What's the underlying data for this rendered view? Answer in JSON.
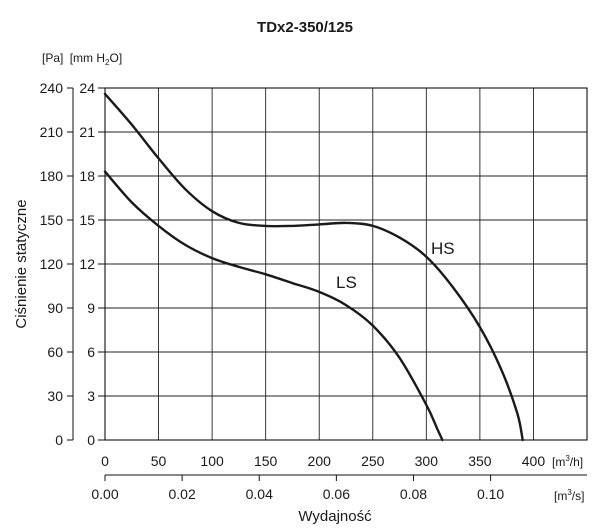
{
  "chart_data": {
    "type": "line",
    "title": "TDx2-350/125",
    "ylabel": "Ciśnienie statyczne",
    "xlabel": "Wydajność",
    "y_units": {
      "pa": "[Pa]",
      "mmh2o_prefix": "[mm H",
      "mmh2o_sub": "2",
      "mmh2o_suffix": "O]"
    },
    "x_units": {
      "m3h_prefix": "[m",
      "m3h_sup": "3",
      "m3h_suffix": "/h]",
      "m3s_prefix": "[m",
      "m3s_sup": "3",
      "m3s_suffix": "/s]"
    },
    "x_ticks_m3h": [
      "0",
      "50",
      "100",
      "150",
      "200",
      "250",
      "300",
      "350",
      "400"
    ],
    "x_ticks_m3s": [
      "0.00",
      "0.02",
      "0.04",
      "0.06",
      "0.08",
      "0.10"
    ],
    "y_ticks_pa": [
      "0",
      "30",
      "60",
      "90",
      "120",
      "150",
      "180",
      "210",
      "240"
    ],
    "y_ticks_mm": [
      "0",
      "3",
      "6",
      "9",
      "12",
      "15",
      "18",
      "21",
      "24"
    ],
    "xlim": [
      0,
      450
    ],
    "ylim": [
      0,
      240
    ],
    "grid": true,
    "series": [
      {
        "name": "HS",
        "x": [
          0,
          25,
          50,
          75,
          100,
          125,
          150,
          175,
          200,
          225,
          250,
          275,
          300,
          325,
          350,
          370,
          385,
          390
        ],
        "y": [
          236,
          215,
          192,
          171,
          156,
          148,
          146,
          146,
          147,
          148,
          146,
          138,
          125,
          104,
          77,
          48,
          18,
          0
        ]
      },
      {
        "name": "LS",
        "x": [
          0,
          25,
          50,
          75,
          100,
          125,
          150,
          175,
          200,
          225,
          250,
          275,
          300,
          310,
          315
        ],
        "y": [
          183,
          162,
          146,
          133,
          124,
          118,
          113,
          107,
          101,
          92,
          78,
          56,
          24,
          8,
          0
        ]
      }
    ]
  }
}
